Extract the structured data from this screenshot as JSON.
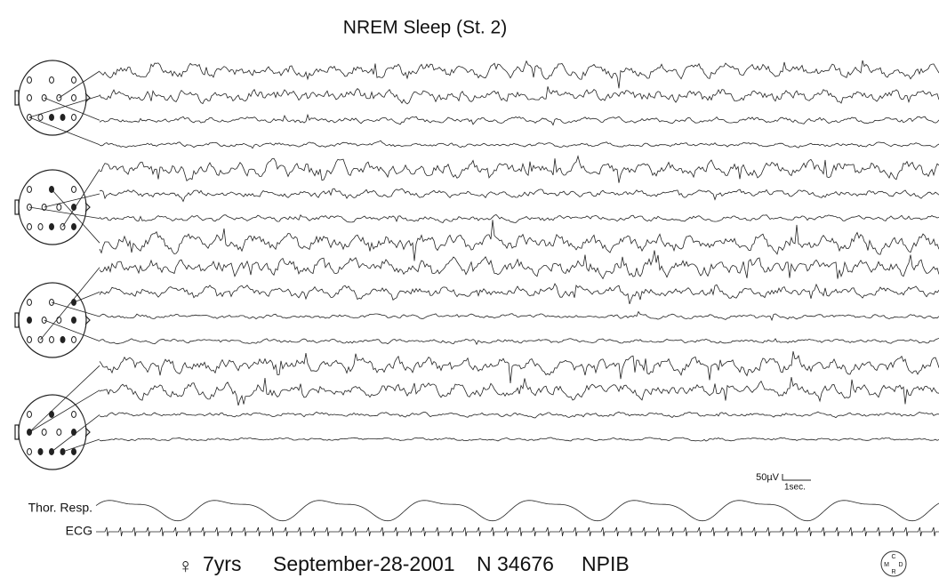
{
  "header": {
    "title": "NREM Sleep (St. 2)"
  },
  "channels": {
    "respiration": "Thor. Resp.",
    "ecg": "ECG"
  },
  "scale": {
    "amplitude": "50µV",
    "time": "1sec."
  },
  "footer": {
    "sex": "♀",
    "age": "7yrs",
    "date": "September-28-2001",
    "record": "N 34676",
    "lab": "NPIB"
  },
  "logo": {
    "top": "C",
    "left": "M",
    "right": "D",
    "bottom": "R"
  }
}
